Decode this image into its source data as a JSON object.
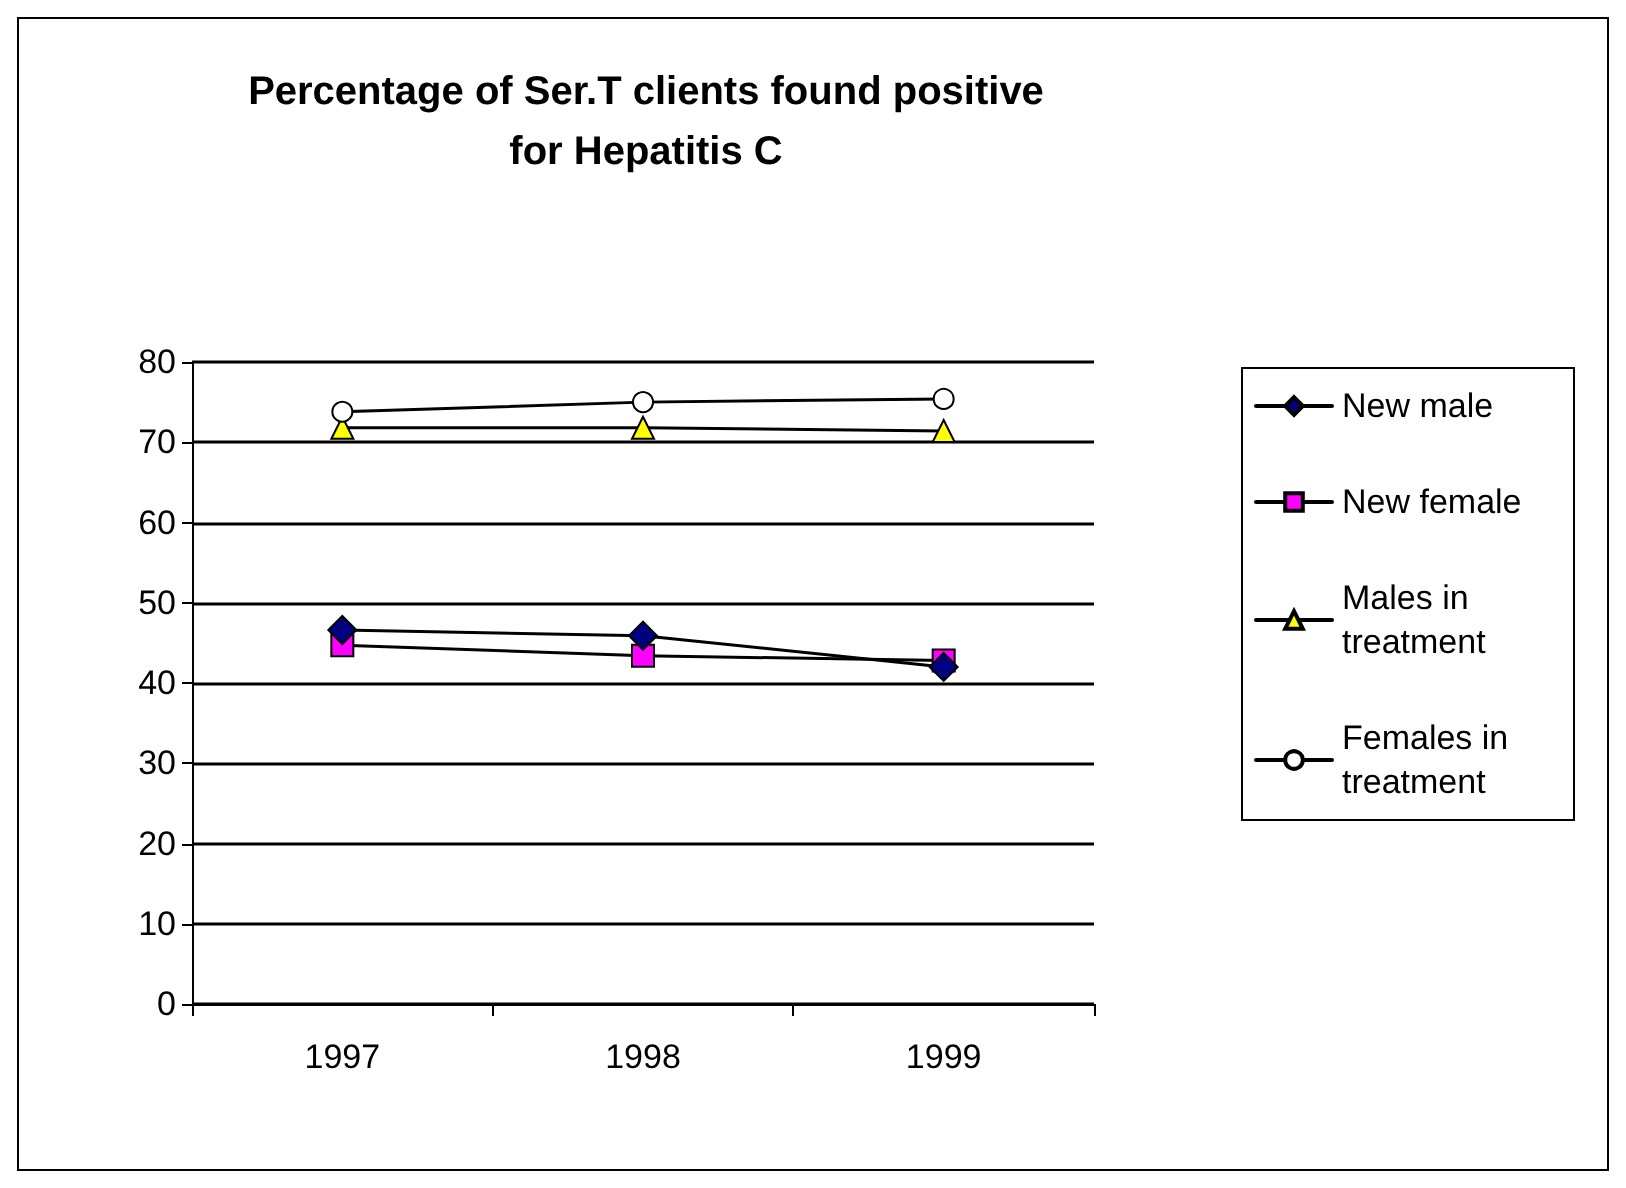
{
  "chart_data": {
    "type": "line",
    "title": "Percentage of Ser.T clients found positive\nfor Hepatitis C",
    "categories": [
      "1997",
      "1998",
      "1999"
    ],
    "series": [
      {
        "name": "New male",
        "color": "#000080",
        "marker": "diamond",
        "values": [
          46.6,
          45.9,
          42
        ]
      },
      {
        "name": "New female",
        "color": "#ff00ff",
        "marker": "square",
        "values": [
          44.7,
          43.4,
          42.8
        ]
      },
      {
        "name": "Males in treatment",
        "color": "#ffff00",
        "marker": "triangle",
        "values": [
          71.8,
          71.8,
          71.4
        ]
      },
      {
        "name": "Females in treatment",
        "color": "#ffffff",
        "marker": "circle",
        "values": [
          73.8,
          75.0,
          75.4
        ]
      }
    ],
    "ylim": [
      0,
      80
    ],
    "yticks": [
      0,
      10,
      20,
      30,
      40,
      50,
      60,
      70,
      80
    ],
    "grid": "y",
    "legend": "right",
    "line_style": "solid"
  }
}
